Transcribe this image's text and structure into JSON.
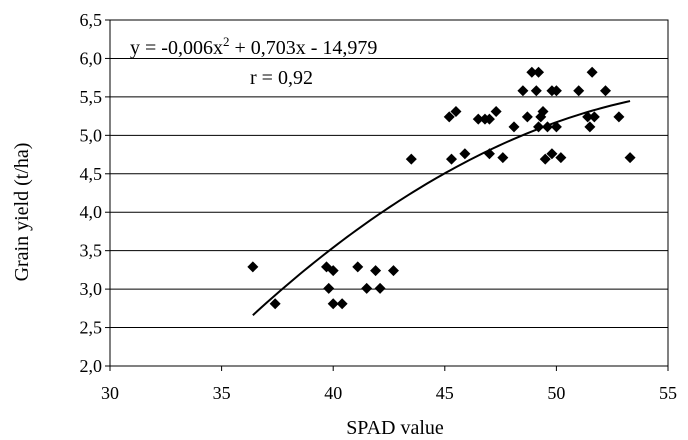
{
  "chart_data": {
    "type": "scatter",
    "xlabel": "SPAD value",
    "ylabel": "Grain yield  (t/ha)",
    "xlim": [
      30,
      55
    ],
    "ylim": [
      2.0,
      6.5
    ],
    "x_ticks": [
      "30",
      "35",
      "40",
      "45",
      "50",
      "55"
    ],
    "y_ticks": [
      "2,0",
      "2,5",
      "3,0",
      "3,5",
      "4,0",
      "4,5",
      "5,0",
      "5,5",
      "6,0",
      "6,5"
    ],
    "grid": "horizontal",
    "marker": "diamond",
    "equation": {
      "prefix": "y = -0,006x",
      "sup": "2",
      "suffix": " + 0,703x - 14,979"
    },
    "r_text": "r = 0,92",
    "trendline": {
      "a": -0.006,
      "b": 0.703,
      "c": -14.979,
      "x_range": [
        36.4,
        53.3
      ]
    },
    "series": [
      {
        "points": [
          [
            36.4,
            3.29
          ],
          [
            37.4,
            2.81
          ],
          [
            39.7,
            3.29
          ],
          [
            39.8,
            3.01
          ],
          [
            40.0,
            3.24
          ],
          [
            40.0,
            2.81
          ],
          [
            40.4,
            2.81
          ],
          [
            41.1,
            3.29
          ],
          [
            41.5,
            3.01
          ],
          [
            41.9,
            3.24
          ],
          [
            42.1,
            3.01
          ],
          [
            42.7,
            3.24
          ],
          [
            43.5,
            4.69
          ],
          [
            45.2,
            5.24
          ],
          [
            45.3,
            4.69
          ],
          [
            45.5,
            5.31
          ],
          [
            45.9,
            4.76
          ],
          [
            46.5,
            5.21
          ],
          [
            46.8,
            5.21
          ],
          [
            47.0,
            5.21
          ],
          [
            47.0,
            4.76
          ],
          [
            47.3,
            5.31
          ],
          [
            47.6,
            4.71
          ],
          [
            48.1,
            5.11
          ],
          [
            48.5,
            5.58
          ],
          [
            48.7,
            5.24
          ],
          [
            48.9,
            5.82
          ],
          [
            49.1,
            5.58
          ],
          [
            49.2,
            5.82
          ],
          [
            49.2,
            5.11
          ],
          [
            49.3,
            5.24
          ],
          [
            49.4,
            5.31
          ],
          [
            49.5,
            4.69
          ],
          [
            49.6,
            5.11
          ],
          [
            49.8,
            4.76
          ],
          [
            49.8,
            5.58
          ],
          [
            50.0,
            5.58
          ],
          [
            50.0,
            5.11
          ],
          [
            50.2,
            4.71
          ],
          [
            51.0,
            5.58
          ],
          [
            51.4,
            5.24
          ],
          [
            51.5,
            5.11
          ],
          [
            51.6,
            5.82
          ],
          [
            51.7,
            5.24
          ],
          [
            52.2,
            5.58
          ],
          [
            52.8,
            5.24
          ],
          [
            53.3,
            4.71
          ]
        ]
      }
    ]
  }
}
